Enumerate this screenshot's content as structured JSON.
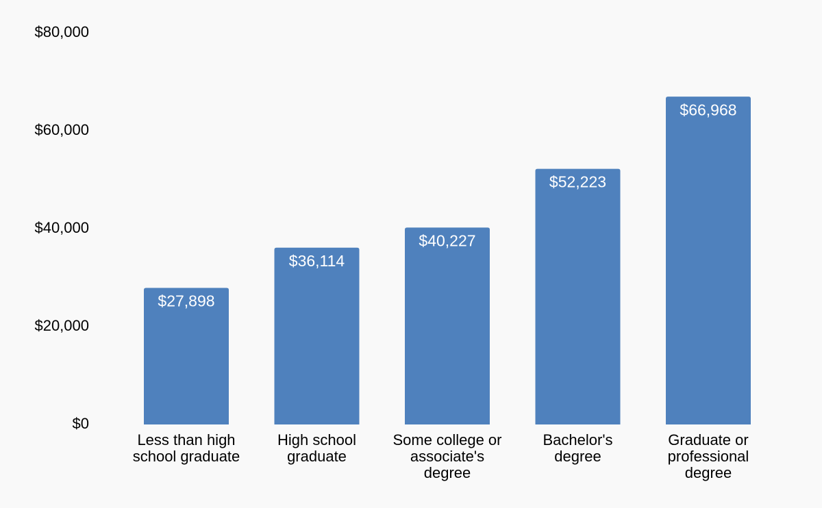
{
  "chart_data": {
    "type": "bar",
    "categories": [
      [
        "Less than high",
        "school graduate"
      ],
      [
        "High school",
        "graduate"
      ],
      [
        "Some college or",
        "associate's",
        "degree"
      ],
      [
        "Bachelor's",
        "degree"
      ],
      [
        "Graduate or",
        "professional",
        "degree"
      ]
    ],
    "values": [
      27898,
      36114,
      40227,
      52223,
      66968
    ],
    "value_labels": [
      "$27,898",
      "$36,114",
      "$40,227",
      "$52,223",
      "$66,968"
    ],
    "yticks": [
      0,
      20000,
      40000,
      60000,
      80000
    ],
    "ytick_labels": [
      "$0",
      "$20,000",
      "$40,000",
      "$60,000",
      "$80,000"
    ],
    "ylim": [
      0,
      80000
    ],
    "grid": false,
    "legend": "none",
    "bar_color": "#4f81bd",
    "title": "",
    "xlabel": "",
    "ylabel": ""
  }
}
